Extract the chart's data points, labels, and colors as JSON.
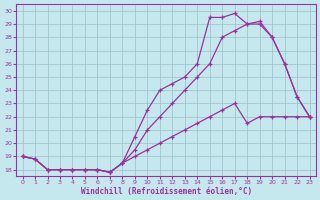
{
  "xlabel": "Windchill (Refroidissement éolien,°C)",
  "x_ticks": [
    0,
    1,
    2,
    3,
    4,
    5,
    6,
    7,
    8,
    9,
    10,
    11,
    12,
    13,
    14,
    15,
    16,
    17,
    18,
    19,
    20,
    21,
    22,
    23
  ],
  "ylim": [
    17.5,
    30.5
  ],
  "xlim": [
    -0.5,
    23.5
  ],
  "yticks": [
    18,
    19,
    20,
    21,
    22,
    23,
    24,
    25,
    26,
    27,
    28,
    29,
    30
  ],
  "bg_color": "#c5e8ef",
  "grid_color": "#9bbfc8",
  "line_color": "#993399",
  "line1_x": [
    0,
    1,
    2,
    3,
    4,
    5,
    6,
    7,
    8,
    9,
    10,
    11,
    12,
    13,
    14,
    15,
    16,
    17,
    18,
    19,
    20,
    21,
    22,
    23
  ],
  "line1_y": [
    19,
    18.8,
    18,
    18,
    18,
    18,
    18,
    17.8,
    18.5,
    19.5,
    21,
    22,
    23,
    24,
    25,
    26,
    28,
    28.5,
    29,
    29,
    28,
    26,
    23.5,
    22
  ],
  "line2_x": [
    0,
    1,
    2,
    3,
    4,
    5,
    6,
    7,
    8,
    9,
    10,
    11,
    12,
    13,
    14,
    15,
    16,
    17,
    18,
    19,
    20,
    21,
    22,
    23
  ],
  "line2_y": [
    19,
    18.8,
    18,
    18,
    18,
    18,
    18,
    17.8,
    18.5,
    20.5,
    22.5,
    24,
    24.5,
    25,
    26,
    29.5,
    29.5,
    29.8,
    29,
    29.2,
    28,
    26,
    23.5,
    22
  ],
  "line3_x": [
    0,
    1,
    2,
    3,
    4,
    5,
    6,
    7,
    8,
    9,
    10,
    11,
    12,
    13,
    14,
    15,
    16,
    17,
    18,
    19,
    20,
    21,
    22,
    23
  ],
  "line3_y": [
    19,
    18.8,
    18,
    18,
    18,
    18,
    18,
    17.8,
    18.5,
    19,
    19.5,
    20,
    20.5,
    21,
    21.5,
    22,
    22.5,
    23,
    21.5,
    22,
    22,
    22,
    22,
    22
  ]
}
